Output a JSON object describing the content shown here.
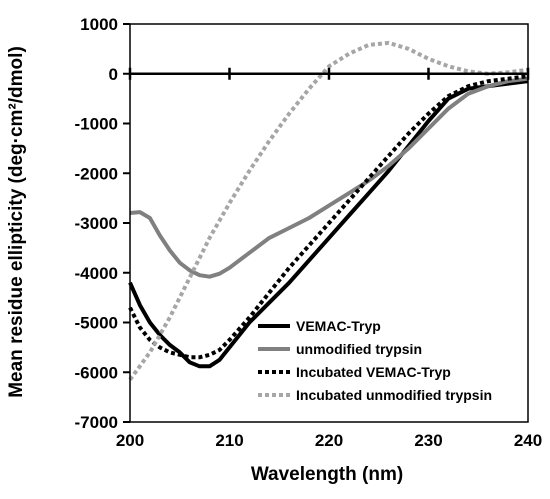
{
  "chart_data": {
    "type": "line",
    "title": "",
    "xlabel": "Wavelength (nm)",
    "ylabel": "Mean residue ellipticity (deg·cm²/dmol)",
    "xlim": [
      200,
      240
    ],
    "ylim": [
      -7000,
      1000
    ],
    "xticks": [
      200,
      210,
      220,
      230,
      240
    ],
    "yticks": [
      1000,
      0,
      -1000,
      -2000,
      -3000,
      -4000,
      -5000,
      -6000,
      -7000
    ],
    "grid": false,
    "legend_position": "bottom-right",
    "series": [
      {
        "name": "VEMAC-Tryp",
        "color": "#000000",
        "style": "solid",
        "x": [
          200,
          201,
          202,
          203,
          204,
          205,
          206,
          207,
          208,
          209,
          210,
          212,
          214,
          216,
          218,
          220,
          222,
          224,
          226,
          228,
          230,
          232,
          234,
          236,
          238,
          240
        ],
        "y": [
          -4200,
          -4650,
          -5000,
          -5250,
          -5450,
          -5600,
          -5800,
          -5880,
          -5880,
          -5750,
          -5500,
          -5000,
          -4600,
          -4200,
          -3750,
          -3300,
          -2850,
          -2400,
          -1950,
          -1450,
          -950,
          -500,
          -300,
          -250,
          -200,
          -150
        ]
      },
      {
        "name": "unmodified trypsin",
        "color": "#808080",
        "style": "solid",
        "x": [
          200,
          201,
          202,
          203,
          204,
          205,
          206,
          207,
          208,
          209,
          210,
          212,
          214,
          216,
          218,
          220,
          222,
          224,
          226,
          228,
          230,
          232,
          234,
          236,
          238,
          240
        ],
        "y": [
          -2800,
          -2780,
          -2900,
          -3250,
          -3550,
          -3800,
          -3950,
          -4050,
          -4080,
          -4020,
          -3900,
          -3600,
          -3300,
          -3100,
          -2900,
          -2650,
          -2400,
          -2150,
          -1850,
          -1500,
          -1100,
          -700,
          -400,
          -250,
          -150,
          -100
        ]
      },
      {
        "name": "Incubated VEMAC-Tryp",
        "color": "#000000",
        "style": "dotted",
        "x": [
          200,
          201,
          202,
          203,
          204,
          205,
          206,
          207,
          208,
          209,
          210,
          212,
          214,
          216,
          218,
          220,
          222,
          224,
          226,
          228,
          230,
          232,
          234,
          236,
          238,
          240
        ],
        "y": [
          -4700,
          -5100,
          -5350,
          -5500,
          -5600,
          -5650,
          -5700,
          -5700,
          -5650,
          -5550,
          -5350,
          -4900,
          -4400,
          -3900,
          -3450,
          -3000,
          -2550,
          -2100,
          -1650,
          -1200,
          -800,
          -450,
          -250,
          -150,
          -100,
          -50
        ]
      },
      {
        "name": "Incubated unmodified trypsin",
        "color": "#a6a6a6",
        "style": "dotted",
        "x": [
          200,
          202,
          204,
          206,
          208,
          210,
          212,
          214,
          216,
          218,
          220,
          222,
          224,
          226,
          228,
          230,
          232,
          234,
          236,
          238,
          240
        ],
        "y": [
          -6150,
          -5600,
          -4900,
          -4100,
          -3300,
          -2600,
          -1950,
          -1350,
          -800,
          -300,
          150,
          400,
          580,
          620,
          500,
          300,
          150,
          50,
          0,
          30,
          80
        ]
      }
    ]
  }
}
